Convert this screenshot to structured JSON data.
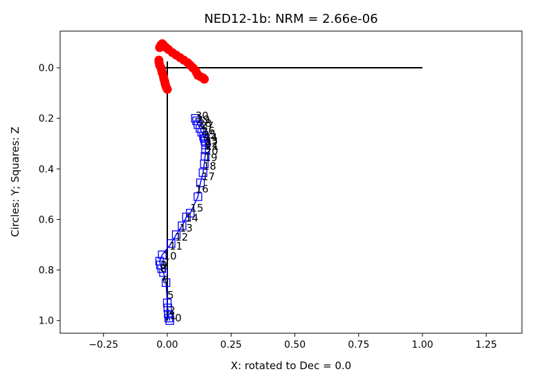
{
  "chart_data": {
    "type": "scatter",
    "title": "NED12-1b: NRM =  2.66e-06",
    "xlabel": "X: rotated to Dec =     0.0",
    "ylabel": "Circles: Y; Squares: Z",
    "xlim": [
      -0.42,
      1.39
    ],
    "ylim": [
      1.05,
      -0.145
    ],
    "y_inverted": true,
    "x_ticks": [
      -0.25,
      0.0,
      0.25,
      0.5,
      0.75,
      1.0,
      1.25
    ],
    "x_tick_labels": [
      "−0.25",
      "0.00",
      "0.25",
      "0.50",
      "0.75",
      "1.00",
      "1.25"
    ],
    "y_ticks": [
      0.0,
      0.2,
      0.4,
      0.6,
      0.8,
      1.0
    ],
    "y_tick_labels": [
      "0.0",
      "0.2",
      "0.4",
      "0.6",
      "0.8",
      "1.0"
    ],
    "grid": false,
    "reference_lines": [
      {
        "x": [
          -0.03,
          1.0
        ],
        "y": [
          0.0,
          0.0
        ]
      },
      {
        "x": [
          0.0,
          0.0
        ],
        "y": [
          -0.025,
          1.0
        ]
      }
    ],
    "series": [
      {
        "marker": "circle",
        "color": "#ff0000",
        "filled": true,
        "x": [
          0.0,
          -0.005,
          -0.008,
          -0.01,
          -0.013,
          -0.015,
          -0.02,
          -0.022,
          -0.025,
          -0.03,
          -0.032,
          -0.033,
          -0.03,
          -0.025,
          -0.02,
          -0.015,
          -0.005,
          0.005,
          0.02,
          0.035,
          0.05,
          0.065,
          0.08,
          0.09,
          0.1,
          0.11,
          0.115,
          0.12,
          0.13,
          0.14,
          0.145
        ],
        "y": [
          0.085,
          0.075,
          0.065,
          0.055,
          0.045,
          0.035,
          0.02,
          0.01,
          0.0,
          -0.01,
          -0.02,
          -0.03,
          -0.08,
          -0.09,
          -0.095,
          -0.09,
          -0.08,
          -0.072,
          -0.06,
          -0.05,
          -0.04,
          -0.03,
          -0.02,
          -0.01,
          0.0,
          0.01,
          0.02,
          0.03,
          0.035,
          0.04,
          0.045
        ]
      },
      {
        "marker": "square",
        "color": "#0000ff",
        "filled": false,
        "line": true,
        "x": [
          0.01,
          0.006,
          0.004,
          0.002,
          0.0,
          -0.005,
          -0.015,
          -0.022,
          -0.027,
          -0.03,
          -0.02,
          0.015,
          0.035,
          0.058,
          0.075,
          0.09,
          0.12,
          0.13,
          0.14,
          0.145,
          0.148,
          0.15,
          0.15,
          0.148,
          0.145,
          0.142,
          0.135,
          0.128,
          0.12,
          0.115,
          0.11
        ],
        "y": [
          1.0,
          0.99,
          0.975,
          0.95,
          0.93,
          0.85,
          0.81,
          0.795,
          0.78,
          0.765,
          0.74,
          0.695,
          0.66,
          0.625,
          0.59,
          0.575,
          0.51,
          0.455,
          0.415,
          0.38,
          0.35,
          0.325,
          0.305,
          0.29,
          0.28,
          0.27,
          0.255,
          0.24,
          0.225,
          0.21,
          0.2
        ]
      }
    ],
    "step_labels": [
      {
        "text": "0",
        "x": 0.03,
        "y": 0.99
      },
      {
        "text": "1",
        "x": 0.01,
        "y": 0.98
      },
      {
        "text": "2",
        "x": 0.006,
        "y": 0.96
      },
      {
        "text": "5",
        "x": 0.0,
        "y": 0.9
      },
      {
        "text": "6",
        "x": -0.02,
        "y": 0.84
      },
      {
        "text": "8",
        "x": -0.028,
        "y": 0.795
      },
      {
        "text": "9",
        "x": -0.026,
        "y": 0.78
      },
      {
        "text": "10",
        "x": -0.015,
        "y": 0.745
      },
      {
        "text": "11",
        "x": 0.008,
        "y": 0.705
      },
      {
        "text": "12",
        "x": 0.03,
        "y": 0.67
      },
      {
        "text": "13",
        "x": 0.048,
        "y": 0.635
      },
      {
        "text": "14",
        "x": 0.07,
        "y": 0.595
      },
      {
        "text": "15",
        "x": 0.09,
        "y": 0.555
      },
      {
        "text": "16",
        "x": 0.11,
        "y": 0.48
      },
      {
        "text": "17",
        "x": 0.135,
        "y": 0.43
      },
      {
        "text": "18",
        "x": 0.14,
        "y": 0.39
      },
      {
        "text": "19",
        "x": 0.145,
        "y": 0.355
      },
      {
        "text": "20",
        "x": 0.148,
        "y": 0.33
      },
      {
        "text": "21",
        "x": 0.15,
        "y": 0.31
      },
      {
        "text": "22",
        "x": 0.148,
        "y": 0.3
      },
      {
        "text": "23",
        "x": 0.147,
        "y": 0.29
      },
      {
        "text": "24",
        "x": 0.145,
        "y": 0.275
      },
      {
        "text": "25",
        "x": 0.14,
        "y": 0.265
      },
      {
        "text": "26",
        "x": 0.135,
        "y": 0.25
      },
      {
        "text": "27",
        "x": 0.13,
        "y": 0.23
      },
      {
        "text": "28",
        "x": 0.122,
        "y": 0.22
      },
      {
        "text": "29",
        "x": 0.115,
        "y": 0.205
      },
      {
        "text": "30",
        "x": 0.11,
        "y": 0.19
      }
    ]
  }
}
